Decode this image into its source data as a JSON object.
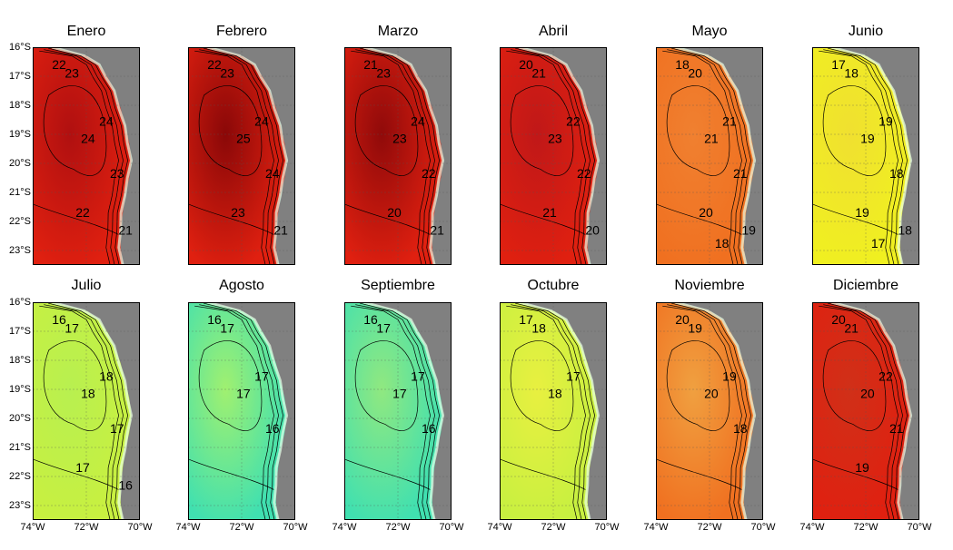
{
  "figure": {
    "background_land_color": "#808080",
    "map_colors": {
      "cold": "#40e0b0",
      "cool": "#c8f040",
      "mild": "#f0f020",
      "warm": "#f07020",
      "hot": "#e02010",
      "hottest": "#9a0b0b"
    }
  },
  "y_ticks": [
    "16°S",
    "17°S",
    "18°S",
    "19°S",
    "20°S",
    "21°S",
    "22°S",
    "23°S"
  ],
  "x_ticks": [
    "74°W",
    "72°W",
    "70°W"
  ],
  "panels": [
    {
      "month": "Enero",
      "base": "hot",
      "center": "#b01010",
      "labels": [
        "22",
        "23",
        "24",
        "24",
        "23",
        "22",
        "21"
      ]
    },
    {
      "month": "Febrero",
      "base": "hot",
      "center": "#8a0808",
      "labels": [
        "22",
        "23",
        "24",
        "25",
        "24",
        "23",
        "21"
      ]
    },
    {
      "month": "Marzo",
      "base": "hot",
      "center": "#900a0a",
      "labels": [
        "21",
        "23",
        "24",
        "23",
        "22",
        "20",
        "21"
      ]
    },
    {
      "month": "Abril",
      "base": "hot",
      "center": "#c01818",
      "labels": [
        "20",
        "21",
        "22",
        "23",
        "22",
        "21",
        "20"
      ]
    },
    {
      "month": "Mayo",
      "base": "warm",
      "center": "#f08030",
      "labels": [
        "18",
        "20",
        "21",
        "21",
        "21",
        "20",
        "19",
        "18"
      ]
    },
    {
      "month": "Junio",
      "base": "mild",
      "center": "#f0e030",
      "labels": [
        "17",
        "18",
        "19",
        "19",
        "18",
        "19",
        "18",
        "17"
      ]
    },
    {
      "month": "Julio",
      "base": "cool",
      "center": "#b8f050",
      "labels": [
        "16",
        "17",
        "18",
        "18",
        "17",
        "17",
        "16"
      ]
    },
    {
      "month": "Agosto",
      "base": "cold",
      "center": "#a0f070",
      "labels": [
        "16",
        "17",
        "17",
        "17",
        "16"
      ]
    },
    {
      "month": "Septiembre",
      "base": "cold",
      "center": "#90e880",
      "labels": [
        "16",
        "17",
        "17",
        "17",
        "16"
      ]
    },
    {
      "month": "Octubre",
      "base": "cool",
      "center": "#e8f040",
      "labels": [
        "17",
        "18",
        "17",
        "18"
      ]
    },
    {
      "month": "Noviembre",
      "base": "warm",
      "center": "#f0a040",
      "labels": [
        "20",
        "19",
        "19",
        "20",
        "18"
      ]
    },
    {
      "month": "Diciembre",
      "base": "hot",
      "center": "#d03018",
      "labels": [
        "20",
        "21",
        "22",
        "20",
        "21",
        "19"
      ]
    }
  ]
}
